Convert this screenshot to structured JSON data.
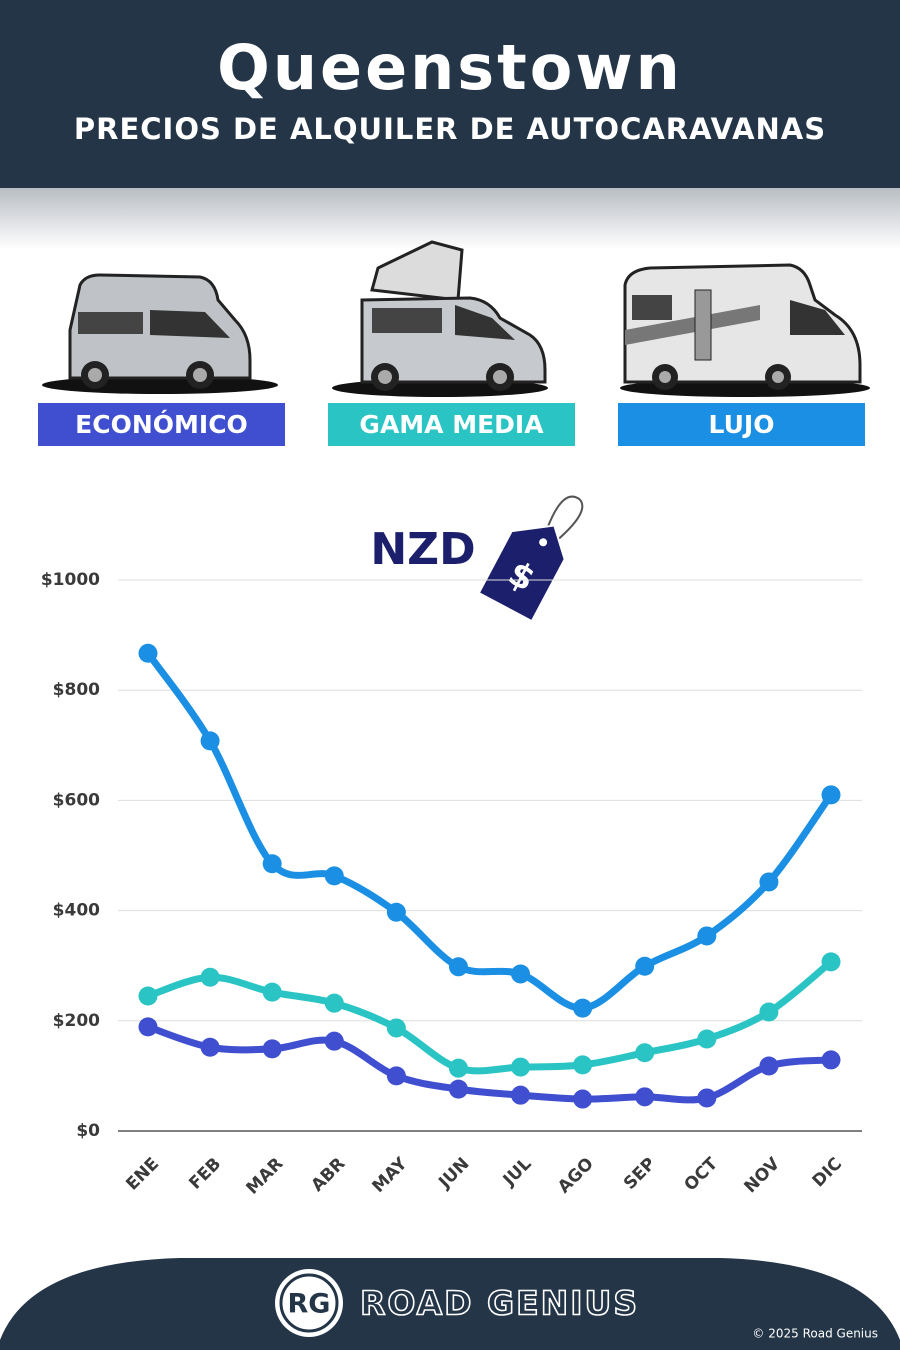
{
  "chart_data": {
    "type": "line",
    "title": "Queenstown",
    "subtitle": "PRECIOS DE ALQUILER DE AUTOCARAVANAS",
    "currency_label": "NZD",
    "currency_icon": "$",
    "categories": [
      "ENE",
      "FEB",
      "MAR",
      "ABR",
      "MAY",
      "JUN",
      "JUL",
      "AGO",
      "SEP",
      "OCT",
      "NOV",
      "DIC"
    ],
    "series": [
      {
        "name": "ECONÓMICO",
        "color": "#3f4fd0",
        "values": [
          189,
          152,
          149,
          163,
          100,
          76,
          65,
          58,
          62,
          60,
          118,
          129
        ]
      },
      {
        "name": "GAMA MEDIA",
        "color": "#2ac4c4",
        "values": [
          245,
          279,
          252,
          232,
          187,
          114,
          116,
          120,
          142,
          167,
          216,
          307
        ]
      },
      {
        "name": "LUJO",
        "color": "#1a8fe3",
        "values": [
          867,
          708,
          485,
          463,
          397,
          298,
          285,
          223,
          299,
          354,
          452,
          610
        ]
      }
    ],
    "ylim": [
      0,
      1000
    ],
    "yticks": [
      {
        "value": 0,
        "label": "$0"
      },
      {
        "value": 200,
        "label": "$200"
      },
      {
        "value": 400,
        "label": "$400"
      },
      {
        "value": 600,
        "label": "$600"
      },
      {
        "value": 800,
        "label": "$800"
      },
      {
        "value": 1000,
        "label": "$1000"
      }
    ],
    "grid": true,
    "brand_logo": "RG",
    "brand": "ROAD GENIUS",
    "copyright": "© 2025 Road Genius"
  }
}
